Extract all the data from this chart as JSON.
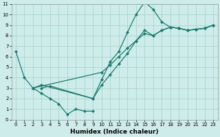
{
  "line1_x": [
    0,
    1,
    2,
    3,
    4,
    5,
    6,
    7,
    8,
    9
  ],
  "line1_y": [
    6.5,
    4.0,
    3.0,
    2.5,
    2.0,
    1.5,
    0.5,
    1.0,
    0.8,
    0.8
  ],
  "line2_x": [
    3,
    4,
    9,
    10,
    11,
    12,
    13,
    14,
    15,
    16,
    17,
    18,
    19,
    20,
    21,
    22,
    23
  ],
  "line2_y": [
    3.0,
    3.2,
    2.0,
    3.8,
    5.5,
    6.5,
    8.3,
    10.0,
    11.2,
    10.5,
    9.3,
    8.8,
    8.7,
    8.5,
    8.6,
    8.7,
    9.0
  ],
  "line3_x": [
    2,
    3,
    9,
    10,
    11,
    12,
    13,
    14,
    15,
    16,
    17,
    18,
    19,
    20,
    21,
    22,
    23
  ],
  "line3_y": [
    3.0,
    3.3,
    2.0,
    3.3,
    4.3,
    5.3,
    6.3,
    7.5,
    8.5,
    8.0,
    8.5,
    8.8,
    8.7,
    8.5,
    8.6,
    8.7,
    9.0
  ],
  "line4_x": [
    2,
    10,
    11,
    12,
    13,
    14,
    15,
    16,
    17,
    18,
    19,
    20,
    21,
    22,
    23
  ],
  "line4_y": [
    3.0,
    4.5,
    5.2,
    6.0,
    6.8,
    7.5,
    8.2,
    8.0,
    8.5,
    8.8,
    8.7,
    8.5,
    8.6,
    8.7,
    9.0
  ],
  "color": "#1a7a6e",
  "bg_color": "#ceecea",
  "grid_color": "#aad4d0",
  "xlabel": "Humidex (Indice chaleur)",
  "xlim": [
    -0.5,
    23.5
  ],
  "ylim": [
    0,
    11
  ],
  "xticks": [
    0,
    1,
    2,
    3,
    4,
    5,
    6,
    7,
    8,
    9,
    10,
    11,
    12,
    13,
    14,
    15,
    16,
    17,
    18,
    19,
    20,
    21,
    22,
    23
  ],
  "yticks": [
    0,
    1,
    2,
    3,
    4,
    5,
    6,
    7,
    8,
    9,
    10,
    11
  ],
  "xlabel_fontsize": 6.5,
  "tick_fontsize": 5.0,
  "linewidth": 0.9,
  "markersize": 2.2
}
